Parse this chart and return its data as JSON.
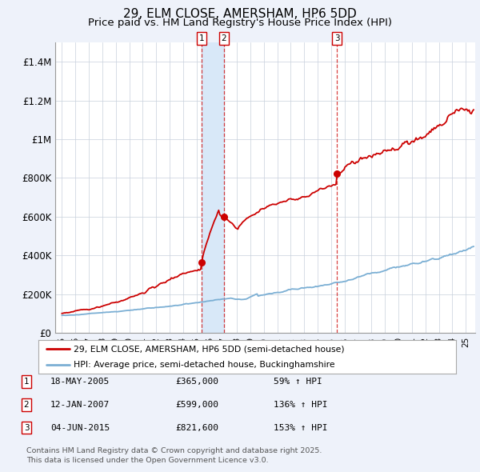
{
  "title": "29, ELM CLOSE, AMERSHAM, HP6 5DD",
  "subtitle": "Price paid vs. HM Land Registry's House Price Index (HPI)",
  "legend_line1": "29, ELM CLOSE, AMERSHAM, HP6 5DD (semi-detached house)",
  "legend_line2": "HPI: Average price, semi-detached house, Buckinghamshire",
  "footer": "Contains HM Land Registry data © Crown copyright and database right 2025.\nThis data is licensed under the Open Government Licence v3.0.",
  "transactions": [
    {
      "num": 1,
      "date": "18-MAY-2005",
      "price": 365000,
      "pct": "59%",
      "dir": "↑"
    },
    {
      "num": 2,
      "date": "12-JAN-2007",
      "price": 599000,
      "pct": "136%",
      "dir": "↑"
    },
    {
      "num": 3,
      "date": "04-JUN-2015",
      "price": 821600,
      "pct": "153%",
      "dir": "↑"
    }
  ],
  "transaction_dates_decimal": [
    2005.37,
    2007.03,
    2015.42
  ],
  "red_line_color": "#cc0000",
  "blue_line_color": "#7bafd4",
  "background_color": "#eef2fa",
  "plot_bg_color": "#ffffff",
  "grid_color": "#c8d0dc",
  "vspan_color": "#d8e8f8",
  "ylim": [
    0,
    1500000
  ],
  "yticks": [
    0,
    200000,
    400000,
    600000,
    800000,
    1000000,
    1200000,
    1400000
  ],
  "ytick_labels": [
    "£0",
    "£200K",
    "£400K",
    "£600K",
    "£800K",
    "£1M",
    "£1.2M",
    "£1.4M"
  ],
  "xlim_start": 1994.5,
  "xlim_end": 2025.7,
  "title_fontsize": 11,
  "subtitle_fontsize": 9.5,
  "axis_fontsize": 8.5
}
